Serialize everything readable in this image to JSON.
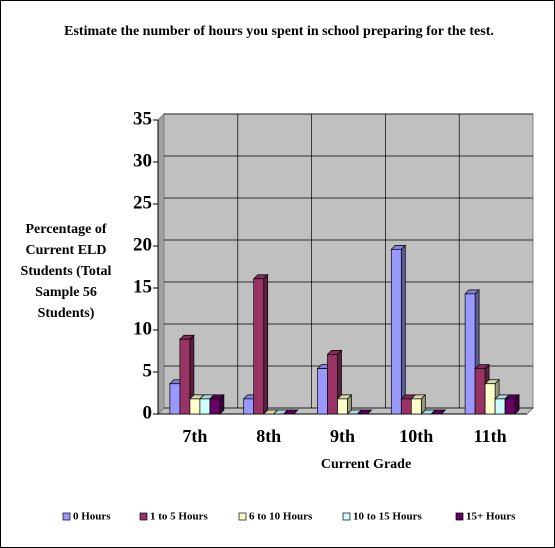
{
  "chart_data": {
    "type": "bar3d",
    "title": "Estimate the number of hours you spent in school preparing for the test.",
    "y_label": "Percentage of Current ELD Students (Total Sample 56 Students)",
    "x_label": "Current Grade",
    "categories": [
      "7th",
      "8th",
      "9th",
      "10th",
      "11th"
    ],
    "series": [
      {
        "name": "0 Hours",
        "color": "#9999ff",
        "values": [
          3.6,
          1.8,
          5.4,
          19.6,
          14.3
        ]
      },
      {
        "name": "1 to 5 Hours",
        "color": "#993366",
        "values": [
          8.9,
          16.1,
          7.1,
          1.8,
          5.4
        ]
      },
      {
        "name": "6 to 10 Hours",
        "color": "#ffffcc",
        "values": [
          1.8,
          0,
          1.8,
          1.8,
          3.6
        ]
      },
      {
        "name": "10 to 15 Hours",
        "color": "#ccffff",
        "values": [
          1.8,
          0,
          0,
          0,
          1.8
        ]
      },
      {
        "name": "15+ Hours",
        "color": "#660066",
        "values": [
          1.8,
          0,
          0,
          0,
          1.8
        ]
      }
    ],
    "ylim": [
      0,
      35
    ],
    "yticks": [
      0,
      5,
      10,
      15,
      20,
      25,
      30,
      35
    ],
    "grid": true
  }
}
